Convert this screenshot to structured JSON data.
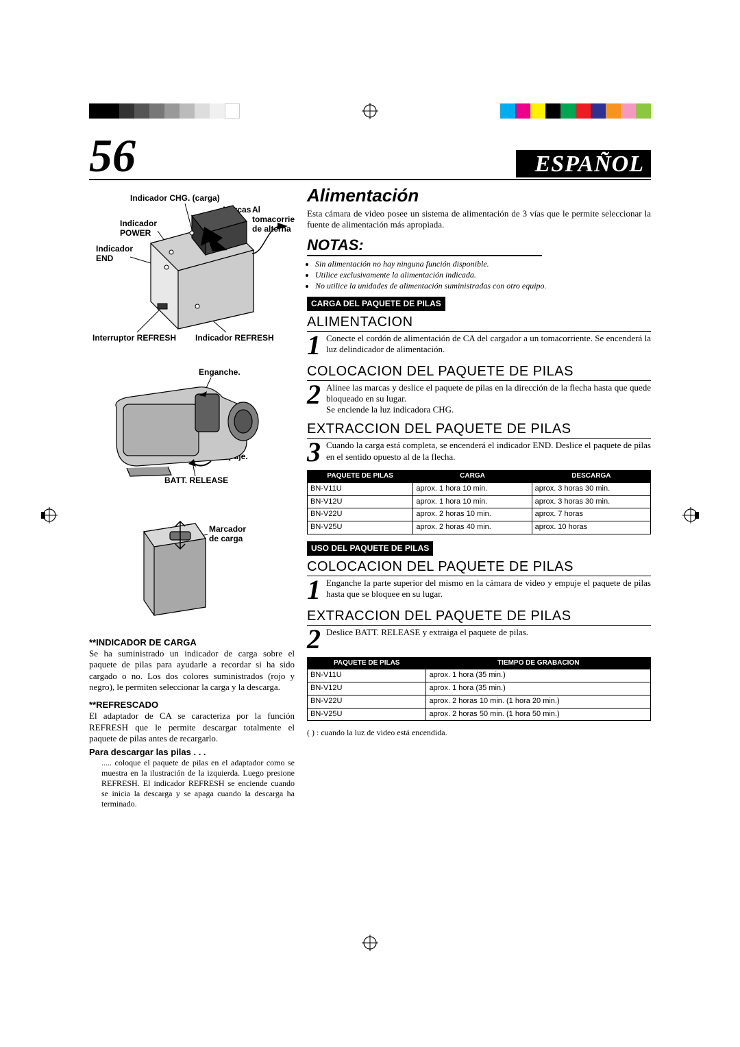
{
  "colorbar_left": [
    "#000000",
    "#000000",
    "#333333",
    "#555555",
    "#777777",
    "#999999",
    "#bbbbbb",
    "#dddddd",
    "#f0f0f0",
    "#ffffff"
  ],
  "colorbar_right": [
    "#00aeef",
    "#ec008c",
    "#fff200",
    "#000000",
    "#00a651",
    "#ed1c24",
    "#2e3192",
    "#f7941d",
    "#f49ac1",
    "#8dc63f"
  ],
  "page_number": "56",
  "language_label": "ESPAÑOL",
  "left_labels": {
    "chg": "Indicador CHG. (carga)",
    "marcas": "Marcas",
    "al_toma": "Al tomacorriente de alterna",
    "power": "Indicador POWER",
    "end": "Indicador END",
    "refresh_sw": "Interruptor REFRESH",
    "refresh_ind": "Indicador REFRESH",
    "enganche": "Enganche.",
    "empuje": "Empuje.",
    "batt_release": "BATT. RELEASE",
    "marcador": "Marcador de carga"
  },
  "left_text": {
    "ind_carga_title": "**INDICADOR DE CARGA",
    "ind_carga_body": "Se ha suministrado un indicador de carga sobre el paquete de pilas para ayudarle a recordar si ha sido cargado o no. Los dos colores suministrados (rojo y negro), le permiten seleccionar la carga y la descarga.",
    "refrescado_title": "**REFRESCADO",
    "refrescado_body": "El adaptador de CA se caracteriza por la función REFRESH que le permite descargar totalmente el paquete de pilas antes de recargarlo.",
    "descargar_title": "Para descargar las pilas . . .",
    "descargar_body": "..... coloque el paquete de pilas en el adaptador como se muestra en la ilustración de la izquierda. Luego presione REFRESH. El indicador REFRESH se enciende cuando se inicia la descarga y se apaga cuando la descarga ha terminado."
  },
  "right": {
    "alimentacion_title": "Alimentación",
    "alimentacion_body": "Esta cámara de video posee un sistema de alimentación de 3 vías que le permite seleccionar la fuente de alimentación más apropiada.",
    "notas_label": "NOTAS:",
    "notas": [
      "Sin alimentación no hay ninguna función disponible.",
      "Utilice exclusivamente la alimentación indicada.",
      "No utilice la unidades de alimentación suministradas con otro equipo."
    ],
    "carga_head": "CARGA DEL PAQUETE DE PILAS",
    "step1_title": "ALIMENTACION",
    "step1_body": "Conecte el cordón de alimentación de CA del cargador a un tomacorriente. Se encenderá la luz delindicador de alimentación.",
    "step2_title": "COLOCACION DEL PAQUETE DE PILAS",
    "step2_body": "Alinee las marcas y deslice el paquete de pilas en la dirección de la flecha hasta que quede bloqueado en su lugar.",
    "step2_body2": "Se enciende la luz indicadora CHG.",
    "step3_title": "EXTRACCION DEL PAQUETE DE PILAS",
    "step3_body": "Cuando la carga está completa, se encenderá el indicador END. Deslice el paquete de pilas en el sentido opuesto al de la flecha.",
    "table1_headers": [
      "PAQUETE DE PILAS",
      "CARGA",
      "DESCARGA"
    ],
    "table1_rows": [
      [
        "BN-V11U",
        "aprox. 1 hora 10 min.",
        "aprox. 3 horas 30 min."
      ],
      [
        "BN-V12U",
        "aprox. 1 hora 10 min.",
        "aprox. 3 horas 30 min."
      ],
      [
        "BN-V22U",
        "aprox. 2 horas 10 min.",
        "aprox. 7 horas"
      ],
      [
        "BN-V25U",
        "aprox. 2 horas 40 min.",
        "aprox. 10 horas"
      ]
    ],
    "uso_head": "USO DEL PAQUETE DE PILAS",
    "uso_step1_title": "COLOCACION DEL PAQUETE DE PILAS",
    "uso_step1_body": "Enganche la parte superior del mismo en la cámara de video y empuje el paquete de pilas hasta que se bloquee en su lugar.",
    "uso_step2_title": "EXTRACCION DEL PAQUETE DE PILAS",
    "uso_step2_body": "Deslice BATT. RELEASE y extraiga el paquete de pilas.",
    "table2_headers": [
      "PAQUETE DE PILAS",
      "TIEMPO DE GRABACION"
    ],
    "table2_rows": [
      [
        "BN-V11U",
        "aprox. 1 hora (35 min.)"
      ],
      [
        "BN-V12U",
        "aprox. 1 hora (35 min.)"
      ],
      [
        "BN-V22U",
        "aprox. 2 horas 10 min. (1 hora 20 min.)"
      ],
      [
        "BN-V25U",
        "aprox. 2 horas 50 min. (1 hora 50 min.)"
      ]
    ],
    "table2_note": "(  ) : cuando la luz de video está encendida."
  },
  "step_numbers": {
    "one": "1",
    "two": "2",
    "three": "3"
  }
}
